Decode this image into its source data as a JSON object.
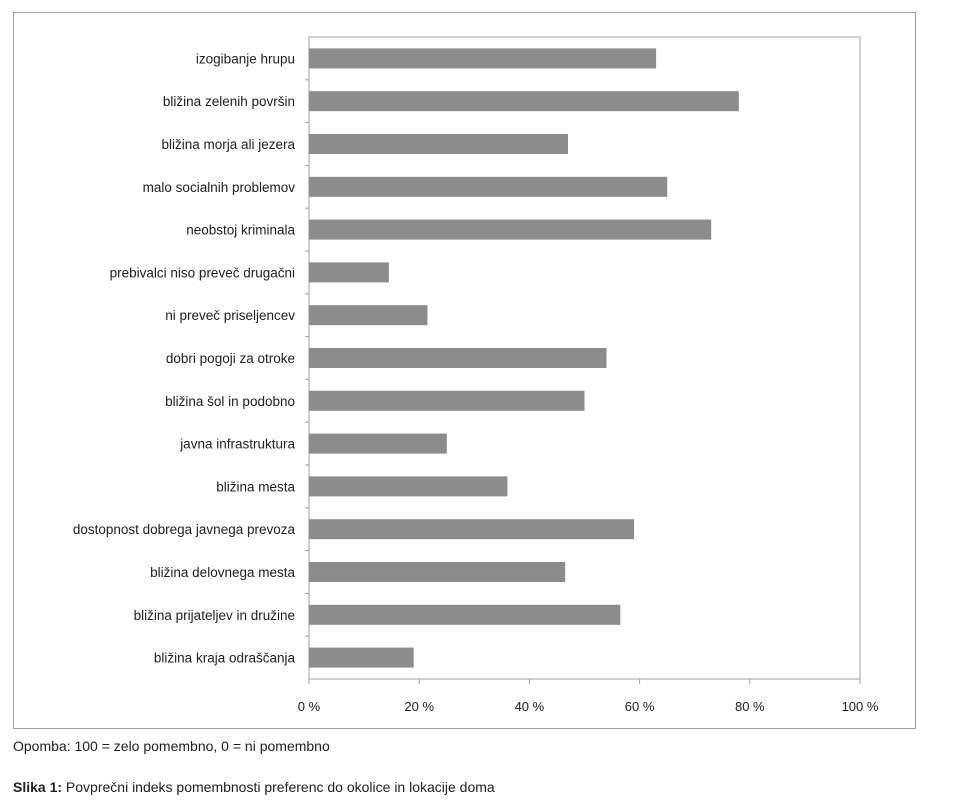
{
  "chart_data": {
    "type": "bar",
    "orientation": "horizontal",
    "categories": [
      "izogibanje hrupu",
      "bližina zelenih površin",
      "bližina morja ali jezera",
      "malo socialnih problemov",
      "neobstoj kriminala",
      "prebivalci niso preveč drugačni",
      "ni preveč priseljencev",
      "dobri pogoji za otroke",
      "bližina šol in podobno",
      "javna infrastruktura",
      "bližina mesta",
      "dostopnost dobrega javnega prevoza",
      "bližina delovnega mesta",
      "bližina prijateljev in družine",
      "bližina kraja odraščanja"
    ],
    "values": [
      63,
      78,
      47,
      65,
      73,
      14.5,
      21.5,
      54,
      50,
      25,
      36,
      59,
      46.5,
      56.5,
      19
    ],
    "xlim": [
      0,
      100
    ],
    "xticks": [
      "0 %",
      "20 %",
      "40 %",
      "60 %",
      "80 %",
      "100 %"
    ],
    "xtick_values": [
      0,
      20,
      40,
      60,
      80,
      100
    ],
    "bar_color": "#8c8c8c",
    "grid": false,
    "title": "",
    "xlabel": "",
    "ylabel": ""
  },
  "note": "Opomba: 100 = zelo pomembno, 0 = ni pomembno",
  "caption": {
    "prefix": "Slika 1:",
    "text": " Povprečni indeks pomembnosti preferenc do okolice in lokacije doma"
  }
}
